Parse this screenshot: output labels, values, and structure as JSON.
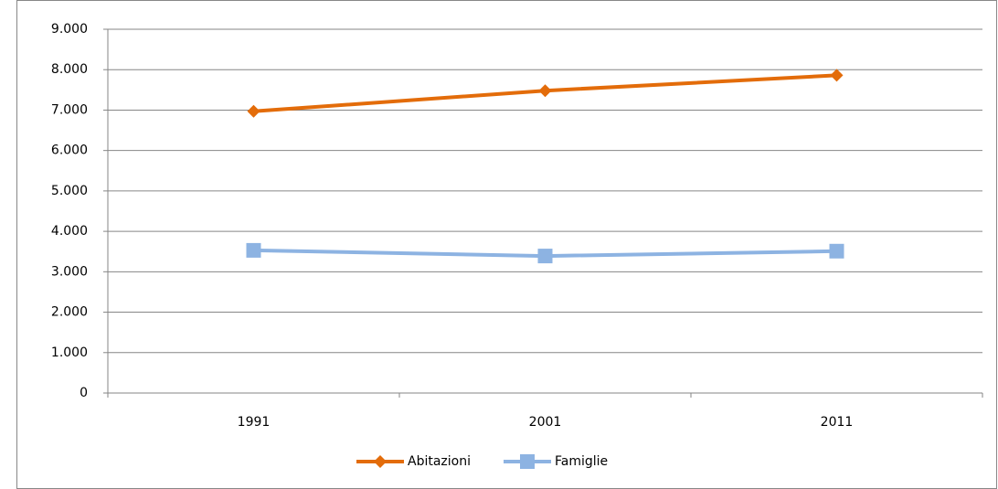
{
  "chart_data": {
    "type": "line",
    "categories": [
      "1991",
      "2001",
      "2011"
    ],
    "series": [
      {
        "name": "Abitazioni",
        "color": "#e36c0a",
        "marker": "diamond",
        "values": [
          6970,
          7480,
          7860
        ]
      },
      {
        "name": "Famiglie",
        "color": "#8db3e2",
        "marker": "square",
        "values": [
          3530,
          3390,
          3510
        ]
      }
    ],
    "ylim": [
      0,
      9000
    ],
    "yticks": [
      0,
      {
        "value": 1000,
        "label": "1.000"
      },
      {
        "value": 2000,
        "label": "2.000"
      },
      {
        "value": 3000,
        "label": "3.000"
      },
      {
        "value": 4000,
        "label": "4.000"
      },
      {
        "value": 5000,
        "label": "5.000"
      },
      {
        "value": 6000,
        "label": "6.000"
      },
      {
        "value": 7000,
        "label": "7.000"
      },
      {
        "value": 8000,
        "label": "8.000"
      },
      {
        "value": 9000,
        "label": "9.000"
      }
    ],
    "grid": true,
    "legend": "bottom"
  }
}
